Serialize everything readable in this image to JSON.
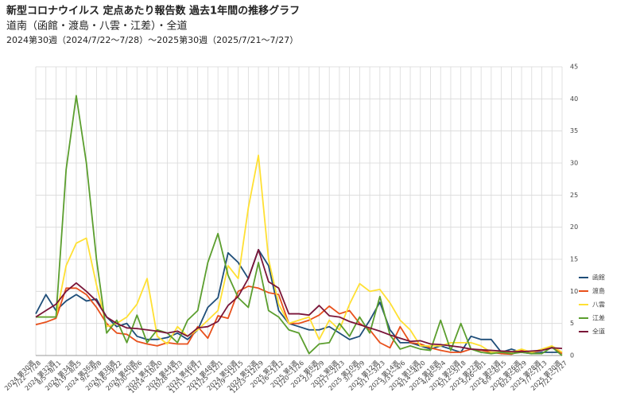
{
  "chart_data": {
    "type": "line",
    "title": "新型コロナウイルス 定点あたり報告数 過去1年間の推移グラフ",
    "subtitle": "道南（函館・渡島・八雲・江差）・全道",
    "period": "2024第30週（2024/7/22～7/28）～2025第30週（2025/7/21～7/27）",
    "categories": [
      "2024 第30週",
      null,
      "2024 第32週",
      null,
      "2024 第34週",
      null,
      "2024 第36週",
      null,
      "2024 第38週",
      null,
      "2024 第40週",
      null,
      "2024 第42週",
      null,
      "2024 第44週",
      null,
      "2024 第46週",
      null,
      "2024 第48週",
      null,
      "2024 第50週",
      null,
      "2024 第52週",
      null,
      "2025 第2週",
      null,
      "2025 第4週",
      null,
      "2025 第6週",
      null,
      "2025 第8週",
      null,
      "2025 第10週",
      null,
      "2025 第12週",
      null,
      "2025 第14週",
      null,
      "2025 第16週",
      null,
      "2025 第18週",
      null,
      "2025 第20週",
      null,
      "2025 第22週",
      null,
      "2025 第24週",
      null,
      "2025 第26週",
      null,
      "2025 第28週",
      null,
      "2025 第30週"
    ],
    "category_dates": [
      "7/22～7/28",
      null,
      "8/5～8/11",
      null,
      "8/19～8/25",
      null,
      "9/2～9/8",
      null,
      "9/16～9/22",
      null,
      "9/30～10/6",
      null,
      "10/14～10/20",
      null,
      "10/28～11/3",
      null,
      "11/11～11/17",
      null,
      "11/25～12/1",
      null,
      "12/9～12/15",
      null,
      "12/23～12/29",
      null,
      "1/6～1/12",
      null,
      "1/20～1/26",
      null,
      "2/3～2/9",
      null,
      "2/17～2/23",
      null,
      "3/3～3/9",
      null,
      "3/17～3/23",
      null,
      "3/31～4/6",
      null,
      "4/14～4/20",
      null,
      "4/28～5/4",
      null,
      "5/12～5/18",
      null,
      "5/26～6/1",
      null,
      "6/9～6/15",
      null,
      "6/23～6/29",
      null,
      "7/7～7/13",
      null,
      "7/21～7/27"
    ],
    "series": [
      {
        "name": "函館",
        "color": "#1f4e79",
        "values": [
          6.5,
          9.5,
          7,
          8.5,
          9.5,
          8.5,
          8.8,
          6,
          4.5,
          5,
          3,
          2.5,
          2.5,
          2.8,
          3.5,
          2.5,
          4,
          7.5,
          9,
          16,
          14.5,
          12,
          16.5,
          14,
          7,
          5,
          4.5,
          4,
          4,
          4.5,
          3.5,
          2.5,
          3,
          5.5,
          8.3,
          4,
          2,
          2,
          1.5,
          1,
          1.5,
          1,
          0.5,
          3,
          2.5,
          2.5,
          0.5,
          1,
          0.5,
          0.3,
          0.5,
          0.5,
          0.5
        ]
      },
      {
        "name": "渡島",
        "color": "#e8501b",
        "values": [
          4.8,
          5.2,
          5.8,
          10.5,
          10.5,
          9.5,
          7.5,
          5,
          3.5,
          3.3,
          2.2,
          1.8,
          1.5,
          2,
          1.8,
          1.8,
          4.5,
          2.7,
          6.2,
          5.8,
          10,
          10.8,
          10.5,
          9.8,
          9.5,
          5,
          5,
          5.5,
          6.3,
          7.7,
          6.5,
          7,
          5,
          4,
          2,
          1.2,
          4.5,
          2,
          1.8,
          1.2,
          0.8,
          0.5,
          0.5,
          1,
          0.8,
          0.5,
          0.3,
          0.2,
          0.8,
          0.5,
          0.8,
          1.3,
          0.3
        ]
      },
      {
        "name": "八雲",
        "color": "#ffe033",
        "values": [
          6,
          6,
          6,
          14,
          17.5,
          18.3,
          11,
          4.5,
          5,
          6,
          8,
          12,
          3,
          1.8,
          4.5,
          3,
          4,
          5.5,
          7,
          14,
          12,
          23,
          31.2,
          15,
          8,
          5,
          5.5,
          6,
          2.5,
          5.5,
          4,
          8,
          11.2,
          10,
          10.3,
          8.2,
          5.5,
          4,
          1.5,
          1.5,
          1.5,
          2,
          2,
          2,
          1.5,
          0.5,
          0.5,
          0.5,
          1,
          0.5,
          1,
          1.5,
          0.5
        ]
      },
      {
        "name": "江差",
        "color": "#5b9e2e",
        "values": [
          6,
          6,
          6,
          29,
          40.5,
          30,
          15,
          3.5,
          5.5,
          2,
          6.3,
          2,
          4,
          3.5,
          2,
          5.5,
          7,
          14.5,
          19,
          12.5,
          9,
          7.5,
          14.5,
          7,
          6,
          4,
          3.5,
          0.3,
          1.8,
          2,
          5,
          3,
          6,
          3.5,
          9.2,
          3.2,
          1,
          1.5,
          1,
          0.8,
          5.5,
          0.8,
          5,
          1,
          0.5,
          0.3,
          0.5,
          0.3,
          0.5,
          0.3,
          0.3,
          1.3,
          0
        ]
      },
      {
        "name": "全道",
        "color": "#7a1538",
        "values": [
          6,
          7,
          8,
          10,
          11.3,
          10,
          8.5,
          6,
          5,
          4.3,
          4.2,
          4,
          3.8,
          3.5,
          3.8,
          3,
          4.3,
          4.5,
          5.3,
          7.8,
          9.2,
          12,
          16.5,
          11.5,
          10.5,
          6.5,
          6.5,
          6.3,
          7.8,
          6.2,
          6,
          5.3,
          4.8,
          4.3,
          3.8,
          3.2,
          2.7,
          2.2,
          2.3,
          1.8,
          1.7,
          1.5,
          1.3,
          1,
          0.9,
          0.8,
          0.7,
          0.6,
          0.6,
          0.7,
          0.8,
          1.2,
          1.1
        ]
      }
    ],
    "ylim": [
      0,
      45
    ],
    "yticks": [
      0,
      5,
      10,
      15,
      20,
      25,
      30,
      35,
      40,
      45
    ],
    "grid": true,
    "legend": "right"
  }
}
